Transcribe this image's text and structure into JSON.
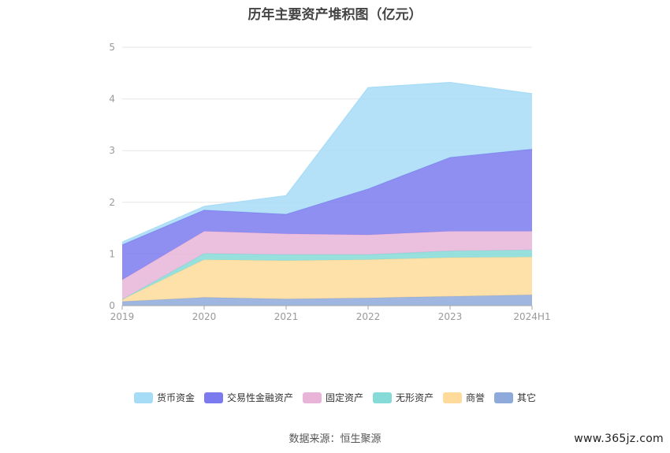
{
  "chart_data": {
    "type": "area",
    "stacked": true,
    "title": "历年主要资产堆积图（亿元）",
    "categories": [
      "2019",
      "2020",
      "2021",
      "2022",
      "2023",
      "2024H1"
    ],
    "ylim": [
      0,
      5
    ],
    "yticks": [
      0,
      1,
      2,
      3,
      4,
      5
    ],
    "grid": true,
    "legend_position": "bottom",
    "series": [
      {
        "name": "其它",
        "color": "#8eaadb",
        "values": [
          0.08,
          0.16,
          0.13,
          0.15,
          0.18,
          0.21
        ]
      },
      {
        "name": "商誉",
        "color": "#fedb9a",
        "values": [
          0.04,
          0.73,
          0.74,
          0.74,
          0.75,
          0.73
        ]
      },
      {
        "name": "无形资产",
        "color": "#86dad7",
        "values": [
          0.0,
          0.12,
          0.12,
          0.1,
          0.13,
          0.14
        ]
      },
      {
        "name": "固定资产",
        "color": "#e8b5d9",
        "values": [
          0.38,
          0.43,
          0.4,
          0.38,
          0.38,
          0.36
        ]
      },
      {
        "name": "交易性金融资产",
        "color": "#7b7bef",
        "values": [
          0.68,
          0.41,
          0.38,
          0.89,
          1.43,
          1.59
        ]
      },
      {
        "name": "货币资金",
        "color": "#a7dcf7",
        "values": [
          0.05,
          0.07,
          0.36,
          1.96,
          1.45,
          1.07
        ]
      }
    ]
  },
  "source_text": "数据来源：恒生聚源",
  "watermark": "www.365jz.com"
}
